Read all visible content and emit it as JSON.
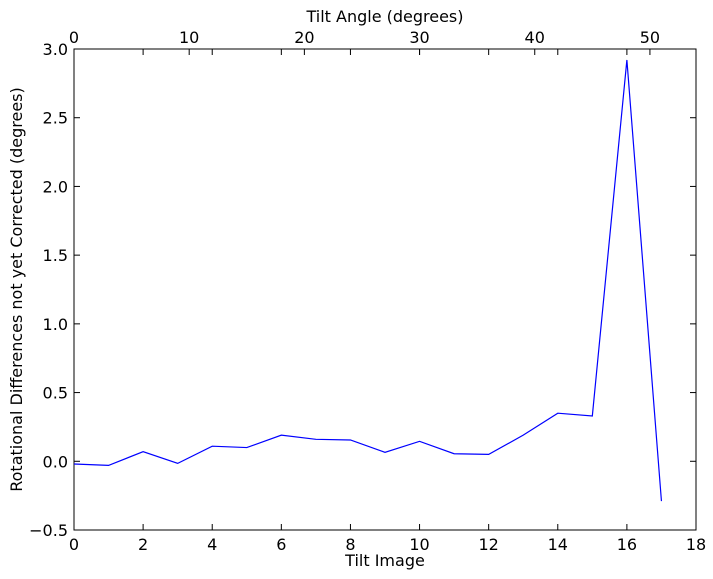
{
  "chart_data": {
    "type": "line",
    "xlabel": "Tilt Image",
    "ylabel": "Rotational Differences not yet Corrected (degrees)",
    "top_xlabel": "Tilt Angle (degrees)",
    "xlim": [
      0,
      18
    ],
    "ylim": [
      -0.5,
      3.0
    ],
    "top_xlim": [
      0,
      54
    ],
    "x_ticks": [
      0,
      2,
      4,
      6,
      8,
      10,
      12,
      14,
      16,
      18
    ],
    "x_tick_labels": [
      "0",
      "2",
      "4",
      "6",
      "8",
      "10",
      "12",
      "14",
      "16",
      "18"
    ],
    "y_ticks": [
      -0.5,
      0.0,
      0.5,
      1.0,
      1.5,
      2.0,
      2.5,
      3.0
    ],
    "y_tick_labels": [
      "−0.5",
      "0.0",
      "0.5",
      "1.0",
      "1.5",
      "2.0",
      "2.5",
      "3.0"
    ],
    "top_x_ticks": [
      0,
      10,
      20,
      30,
      40,
      50
    ],
    "top_x_tick_labels": [
      "0",
      "10",
      "20",
      "30",
      "40",
      "50"
    ],
    "grid": false,
    "legend": "none",
    "series": [
      {
        "color": "#0000ff",
        "x": [
          0,
          1,
          2,
          3,
          4,
          5,
          6,
          7,
          8,
          9,
          10,
          11,
          12,
          13,
          14,
          15,
          16,
          17
        ],
        "y": [
          -0.02,
          -0.03,
          0.07,
          -0.015,
          0.11,
          0.1,
          0.19,
          0.16,
          0.155,
          0.065,
          0.145,
          0.055,
          0.05,
          0.19,
          0.35,
          0.33,
          2.92,
          -0.29
        ]
      }
    ]
  }
}
